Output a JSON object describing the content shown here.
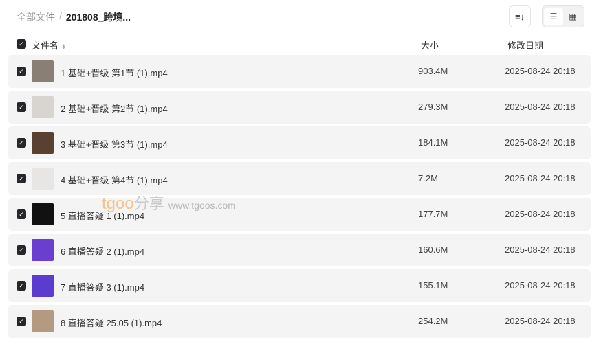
{
  "breadcrumb": {
    "root": "全部文件",
    "separator": "/",
    "current": "201808_跨境..."
  },
  "toolbar": {
    "sort_icon": "sort-icon",
    "list_icon": "list-view-icon",
    "grid_icon": "grid-view-icon",
    "active_view": "list"
  },
  "header": {
    "name": "文件名",
    "size": "大小",
    "date": "修改日期"
  },
  "files": [
    {
      "name": "1 基础+晋级 第1节 (1).mp4",
      "size": "903.4M",
      "date": "2025-08-24 20:18",
      "thumb": "#8a7f74",
      "checked": true
    },
    {
      "name": "2 基础+晋级 第2节 (1).mp4",
      "size": "279.3M",
      "date": "2025-08-24 20:18",
      "thumb": "#d8d4d0",
      "checked": true
    },
    {
      "name": "3 基础+晋级 第3节 (1).mp4",
      "size": "184.1M",
      "date": "2025-08-24 20:18",
      "thumb": "#5a4030",
      "checked": true
    },
    {
      "name": "4 基础+晋级 第4节 (1).mp4",
      "size": "7.2M",
      "date": "2025-08-24 20:18",
      "thumb": "#e8e6e4",
      "checked": true
    },
    {
      "name": "5 直播答疑 1 (1).mp4",
      "size": "177.7M",
      "date": "2025-08-24 20:18",
      "thumb": "#111111",
      "checked": true
    },
    {
      "name": "6 直播答疑 2 (1).mp4",
      "size": "160.6M",
      "date": "2025-08-24 20:18",
      "thumb": "#6a3fd0",
      "checked": true
    },
    {
      "name": "7 直播答疑 3 (1).mp4",
      "size": "155.1M",
      "date": "2025-08-24 20:18",
      "thumb": "#5a3ccf",
      "checked": true
    },
    {
      "name": "8 直播答疑 25.05 (1).mp4",
      "size": "254.2M",
      "date": "2025-08-24 20:18",
      "thumb": "#b49a80",
      "checked": true
    }
  ],
  "watermark": {
    "brand": "tgoo",
    "text": "分享",
    "url": "www.tgoos.com"
  }
}
